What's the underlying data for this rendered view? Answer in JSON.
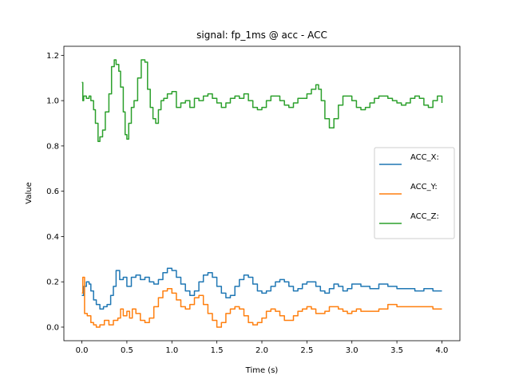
{
  "chart_data": {
    "type": "line",
    "title": "signal: fp_1ms @ acc - ACC",
    "xlabel": "Time (s)",
    "ylabel": "Value",
    "xlim": [
      -0.2,
      4.2
    ],
    "ylim": [
      -0.06,
      1.24
    ],
    "xticks": [
      0.0,
      0.5,
      1.0,
      1.5,
      2.0,
      2.5,
      3.0,
      3.5,
      4.0
    ],
    "xtick_labels": [
      "0.0",
      "0.5",
      "1.0",
      "1.5",
      "2.0",
      "2.5",
      "3.0",
      "3.5",
      "4.0"
    ],
    "yticks": [
      0.0,
      0.2,
      0.4,
      0.6,
      0.8,
      1.0,
      1.2
    ],
    "ytick_labels": [
      "0.0",
      "0.2",
      "0.4",
      "0.6",
      "0.8",
      "1.0",
      "1.2"
    ],
    "grid": false,
    "legend_position": "center-right",
    "series": [
      {
        "name": "ACC_X:",
        "color": "#1f77b4",
        "x": [
          0.0,
          0.02,
          0.05,
          0.08,
          0.1,
          0.13,
          0.16,
          0.2,
          0.24,
          0.28,
          0.32,
          0.35,
          0.38,
          0.42,
          0.46,
          0.5,
          0.55,
          0.6,
          0.65,
          0.7,
          0.75,
          0.8,
          0.85,
          0.9,
          0.95,
          1.0,
          1.05,
          1.1,
          1.15,
          1.2,
          1.25,
          1.3,
          1.35,
          1.4,
          1.45,
          1.5,
          1.55,
          1.6,
          1.65,
          1.7,
          1.75,
          1.8,
          1.85,
          1.9,
          1.95,
          2.0,
          2.05,
          2.1,
          2.15,
          2.2,
          2.25,
          2.3,
          2.35,
          2.4,
          2.45,
          2.5,
          2.55,
          2.6,
          2.65,
          2.7,
          2.75,
          2.8,
          2.85,
          2.9,
          2.95,
          3.0,
          3.1,
          3.2,
          3.3,
          3.4,
          3.5,
          3.6,
          3.7,
          3.8,
          3.9,
          4.0
        ],
        "values": [
          0.14,
          0.18,
          0.2,
          0.19,
          0.16,
          0.12,
          0.1,
          0.08,
          0.09,
          0.1,
          0.14,
          0.18,
          0.25,
          0.21,
          0.22,
          0.18,
          0.22,
          0.23,
          0.21,
          0.22,
          0.2,
          0.19,
          0.21,
          0.24,
          0.26,
          0.25,
          0.22,
          0.19,
          0.16,
          0.14,
          0.16,
          0.2,
          0.23,
          0.24,
          0.22,
          0.18,
          0.15,
          0.13,
          0.14,
          0.18,
          0.21,
          0.23,
          0.22,
          0.19,
          0.16,
          0.15,
          0.16,
          0.18,
          0.2,
          0.21,
          0.2,
          0.18,
          0.16,
          0.17,
          0.19,
          0.2,
          0.2,
          0.18,
          0.16,
          0.15,
          0.17,
          0.19,
          0.18,
          0.16,
          0.17,
          0.19,
          0.18,
          0.17,
          0.19,
          0.18,
          0.17,
          0.17,
          0.16,
          0.17,
          0.16,
          0.16
        ]
      },
      {
        "name": "ACC_Y:",
        "color": "#ff7f0e",
        "x": [
          0.0,
          0.01,
          0.03,
          0.06,
          0.1,
          0.13,
          0.16,
          0.2,
          0.25,
          0.3,
          0.35,
          0.4,
          0.43,
          0.46,
          0.5,
          0.53,
          0.56,
          0.6,
          0.65,
          0.7,
          0.75,
          0.8,
          0.85,
          0.9,
          0.95,
          1.0,
          1.05,
          1.1,
          1.15,
          1.2,
          1.25,
          1.3,
          1.35,
          1.4,
          1.45,
          1.5,
          1.55,
          1.6,
          1.65,
          1.7,
          1.75,
          1.8,
          1.85,
          1.9,
          1.95,
          2.0,
          2.05,
          2.1,
          2.15,
          2.2,
          2.25,
          2.3,
          2.35,
          2.4,
          2.45,
          2.5,
          2.55,
          2.6,
          2.65,
          2.7,
          2.75,
          2.8,
          2.85,
          2.9,
          2.95,
          3.0,
          3.05,
          3.1,
          3.2,
          3.3,
          3.4,
          3.5,
          3.6,
          3.7,
          3.8,
          3.9,
          4.0
        ],
        "values": [
          0.15,
          0.22,
          0.06,
          0.05,
          0.02,
          0.01,
          0.0,
          0.01,
          0.03,
          0.01,
          0.03,
          0.04,
          0.08,
          0.05,
          0.07,
          0.04,
          0.08,
          0.06,
          0.03,
          0.02,
          0.04,
          0.09,
          0.13,
          0.16,
          0.17,
          0.15,
          0.12,
          0.09,
          0.08,
          0.1,
          0.13,
          0.14,
          0.1,
          0.06,
          0.03,
          0.0,
          0.02,
          0.06,
          0.08,
          0.09,
          0.08,
          0.05,
          0.02,
          0.01,
          0.02,
          0.04,
          0.07,
          0.08,
          0.07,
          0.05,
          0.03,
          0.03,
          0.05,
          0.07,
          0.08,
          0.09,
          0.08,
          0.06,
          0.06,
          0.07,
          0.09,
          0.09,
          0.08,
          0.07,
          0.06,
          0.07,
          0.08,
          0.07,
          0.07,
          0.08,
          0.1,
          0.09,
          0.09,
          0.09,
          0.09,
          0.08,
          0.08
        ]
      },
      {
        "name": "ACC_Z:",
        "color": "#2ca02c",
        "x": [
          0.0,
          0.01,
          0.02,
          0.05,
          0.08,
          0.1,
          0.13,
          0.15,
          0.18,
          0.2,
          0.23,
          0.26,
          0.3,
          0.33,
          0.36,
          0.38,
          0.41,
          0.43,
          0.46,
          0.48,
          0.5,
          0.52,
          0.55,
          0.58,
          0.62,
          0.66,
          0.7,
          0.73,
          0.76,
          0.79,
          0.82,
          0.85,
          0.88,
          0.91,
          0.95,
          1.0,
          1.05,
          1.1,
          1.15,
          1.2,
          1.25,
          1.3,
          1.35,
          1.4,
          1.45,
          1.5,
          1.55,
          1.6,
          1.65,
          1.7,
          1.75,
          1.8,
          1.85,
          1.9,
          1.95,
          2.0,
          2.05,
          2.1,
          2.15,
          2.2,
          2.25,
          2.3,
          2.35,
          2.4,
          2.45,
          2.5,
          2.55,
          2.6,
          2.63,
          2.66,
          2.7,
          2.75,
          2.8,
          2.85,
          2.9,
          2.95,
          3.0,
          3.05,
          3.1,
          3.15,
          3.2,
          3.25,
          3.3,
          3.35,
          3.4,
          3.45,
          3.5,
          3.55,
          3.6,
          3.65,
          3.7,
          3.75,
          3.8,
          3.85,
          3.9,
          3.95,
          4.0
        ],
        "values": [
          1.08,
          1.0,
          1.02,
          1.01,
          1.02,
          1.0,
          0.96,
          0.9,
          0.82,
          0.84,
          0.87,
          0.95,
          1.03,
          1.15,
          1.18,
          1.16,
          1.13,
          1.06,
          0.95,
          0.85,
          0.83,
          0.9,
          0.97,
          1.0,
          1.1,
          1.18,
          1.17,
          1.05,
          0.97,
          0.92,
          0.9,
          0.96,
          1.0,
          1.01,
          1.03,
          1.04,
          0.97,
          0.99,
          1.0,
          0.97,
          1.01,
          1.0,
          1.02,
          1.03,
          1.01,
          0.99,
          0.97,
          0.99,
          1.01,
          1.02,
          1.01,
          1.03,
          1.0,
          0.97,
          0.96,
          0.97,
          1.0,
          1.02,
          1.02,
          1.0,
          0.98,
          0.97,
          0.99,
          1.01,
          1.01,
          1.03,
          1.05,
          1.07,
          1.05,
          1.0,
          0.92,
          0.88,
          0.92,
          0.98,
          1.02,
          1.02,
          1.0,
          0.97,
          0.96,
          0.97,
          0.99,
          1.01,
          1.02,
          1.02,
          1.01,
          1.0,
          0.99,
          0.98,
          0.99,
          1.01,
          1.02,
          1.01,
          0.98,
          0.97,
          1.0,
          1.02,
          0.99
        ]
      }
    ]
  }
}
